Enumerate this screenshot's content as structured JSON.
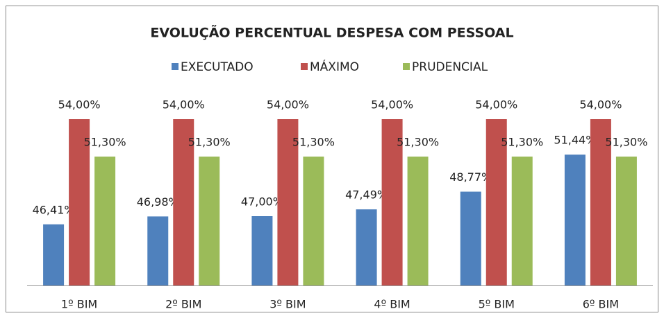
{
  "chart_data": {
    "type": "bar",
    "title": "EVOLUÇÃO PERCENTUAL DESPESA COM PESSOAL",
    "categories": [
      "1º BIM",
      "2º BIM",
      "3º BIM",
      "4º BIM",
      "5º BIM",
      "6º BIM"
    ],
    "series": [
      {
        "name": "EXECUTADO",
        "color": "#4f81bd",
        "values": [
          46.41,
          46.98,
          47.0,
          47.49,
          48.77,
          51.44
        ],
        "value_labels": [
          "46,41%",
          "46,98%",
          "47,00%",
          "47,49%",
          "48,77%",
          "51,44%"
        ]
      },
      {
        "name": "MÁXIMO",
        "color": "#c0504d",
        "values": [
          54.0,
          54.0,
          54.0,
          54.0,
          54.0,
          54.0
        ],
        "value_labels": [
          "54,00%",
          "54,00%",
          "54,00%",
          "54,00%",
          "54,00%",
          "54,00%"
        ]
      },
      {
        "name": "PRUDENCIAL",
        "color": "#9bbb59",
        "values": [
          51.3,
          51.3,
          51.3,
          51.3,
          51.3,
          51.3
        ],
        "value_labels": [
          "51,30%",
          "51,30%",
          "51,30%",
          "51,30%",
          "51,30%",
          "51,30%"
        ]
      }
    ],
    "ylim": [
      42,
      56
    ],
    "legend": "top"
  }
}
